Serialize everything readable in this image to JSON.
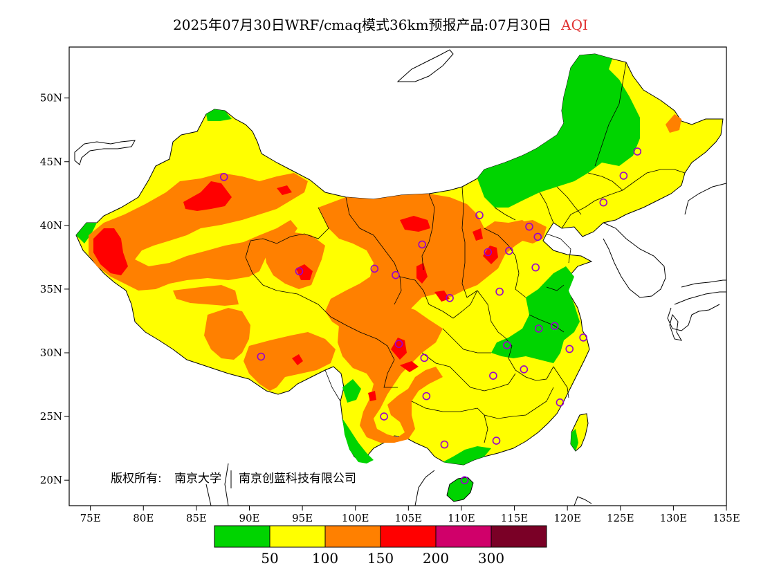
{
  "title": {
    "main": "2025年07月30日WRF/cmaq模式36km预报产品:07月30日",
    "variable": "AQI"
  },
  "copyright": {
    "prefix": "版权所有:",
    "org1": "南京大学",
    "org2": "南京创蓝科技有限公司"
  },
  "axes": {
    "lon_labels": [
      "75E",
      "80E",
      "85E",
      "90E",
      "95E",
      "100E",
      "105E",
      "110E",
      "115E",
      "120E",
      "125E",
      "130E",
      "135E"
    ],
    "lat_labels": [
      "50N",
      "45N",
      "40N",
      "35N",
      "30N",
      "25N",
      "20N"
    ],
    "lon_range": [
      73,
      135
    ],
    "lat_range": [
      18,
      54
    ]
  },
  "legend": {
    "colors": [
      "#00d400",
      "#ffff00",
      "#ff8000",
      "#ff0000",
      "#d0006a",
      "#7a0026"
    ],
    "labels": [
      "50",
      "100",
      "150",
      "200",
      "300"
    ]
  },
  "colors": {
    "good": "#00d400",
    "moderate": "#ffff00",
    "usg": "#ff8000",
    "unhealthy": "#ff0000",
    "very_unhealthy": "#d0006a",
    "hazardous": "#7a0026",
    "station_marker": "#9900cc"
  },
  "stations": [
    {
      "lon": 87.6,
      "lat": 43.8
    },
    {
      "lon": 94.7,
      "lat": 36.4
    },
    {
      "lon": 101.8,
      "lat": 36.6
    },
    {
      "lon": 103.8,
      "lat": 36.1
    },
    {
      "lon": 106.3,
      "lat": 38.5
    },
    {
      "lon": 111.7,
      "lat": 40.8
    },
    {
      "lon": 112.5,
      "lat": 37.9
    },
    {
      "lon": 114.5,
      "lat": 38.0
    },
    {
      "lon": 116.4,
      "lat": 39.9
    },
    {
      "lon": 117.2,
      "lat": 39.1
    },
    {
      "lon": 117.0,
      "lat": 36.7
    },
    {
      "lon": 113.6,
      "lat": 34.8
    },
    {
      "lon": 108.9,
      "lat": 34.3
    },
    {
      "lon": 104.1,
      "lat": 30.7
    },
    {
      "lon": 106.5,
      "lat": 29.6
    },
    {
      "lon": 114.3,
      "lat": 30.6
    },
    {
      "lon": 117.3,
      "lat": 31.9
    },
    {
      "lon": 118.8,
      "lat": 32.1
    },
    {
      "lon": 121.5,
      "lat": 31.2
    },
    {
      "lon": 120.2,
      "lat": 30.3
    },
    {
      "lon": 115.9,
      "lat": 28.7
    },
    {
      "lon": 113.0,
      "lat": 28.2
    },
    {
      "lon": 106.7,
      "lat": 26.6
    },
    {
      "lon": 102.7,
      "lat": 25.0
    },
    {
      "lon": 108.4,
      "lat": 22.8
    },
    {
      "lon": 113.3,
      "lat": 23.1
    },
    {
      "lon": 119.3,
      "lat": 26.1
    },
    {
      "lon": 110.3,
      "lat": 20.0
    },
    {
      "lon": 91.1,
      "lat": 29.7
    },
    {
      "lon": 123.4,
      "lat": 41.8
    },
    {
      "lon": 125.3,
      "lat": 43.9
    },
    {
      "lon": 126.6,
      "lat": 45.8
    }
  ]
}
